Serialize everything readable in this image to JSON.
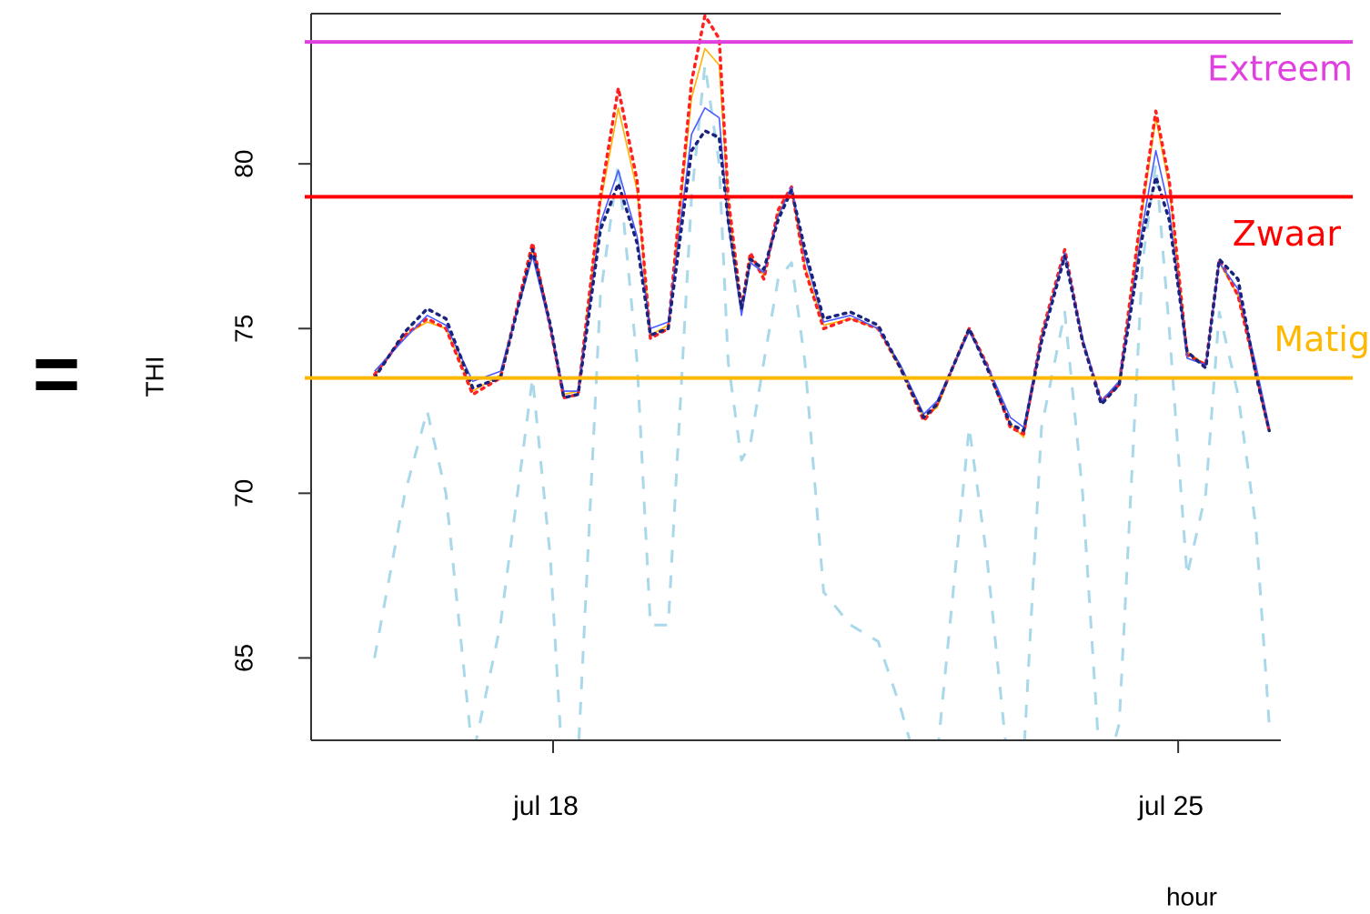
{
  "chart_data": {
    "type": "line",
    "prefix": "=",
    "ylabel": "THI",
    "xlabel": "hour",
    "xlim": [
      15.29,
      26.15
    ],
    "ylim": [
      62.5,
      84.56
    ],
    "xticks": [
      {
        "value": 18,
        "label": "jul 18"
      },
      {
        "value": 25,
        "label": "jul 25"
      }
    ],
    "yticks": [
      65,
      70,
      75,
      80
    ],
    "x": [
      16.0,
      16.34,
      16.59,
      16.8,
      17.1,
      17.41,
      17.77,
      17.97,
      18.12,
      18.28,
      18.53,
      18.73,
      18.94,
      19.09,
      19.29,
      19.55,
      19.7,
      19.86,
      19.96,
      20.11,
      20.21,
      20.36,
      20.52,
      20.67,
      20.82,
      21.03,
      21.33,
      21.64,
      21.89,
      22.15,
      22.3,
      22.66,
      22.86,
      23.12,
      23.27,
      23.47,
      23.73,
      23.93,
      24.14,
      24.34,
      24.6,
      24.75,
      24.9,
      25.1,
      25.31,
      25.46,
      25.67,
      25.87,
      26.02
    ],
    "series": [
      {
        "color": "#a8d8ea",
        "style": "dashed",
        "values": [
          65,
          70,
          72.5,
          70,
          62,
          66,
          73.5,
          68,
          61,
          62,
          76,
          80,
          74,
          66,
          66,
          79,
          83,
          80,
          74,
          71,
          71.5,
          74,
          76.5,
          77,
          74,
          67,
          66,
          65.5,
          63.5,
          61,
          62,
          72,
          68,
          61,
          62,
          72,
          75.5,
          70,
          61,
          63,
          77,
          80,
          75,
          67.5,
          70,
          75.5,
          73,
          69,
          63
        ]
      },
      {
        "color": "#ffb000",
        "style": "solid",
        "values": [
          73.6,
          74.8,
          75.2,
          75.0,
          73.1,
          73.6,
          77.4,
          75.0,
          73.0,
          73.1,
          78.8,
          81.7,
          79.2,
          74.8,
          75.1,
          82.0,
          83.5,
          83.0,
          78.8,
          75.5,
          77.2,
          76.6,
          78.5,
          79.2,
          76.9,
          75.1,
          75.3,
          75.0,
          73.8,
          72.3,
          72.6,
          75.0,
          73.9,
          72.1,
          71.7,
          74.8,
          77.3,
          74.7,
          72.8,
          73.3,
          78.6,
          81.4,
          79.3,
          74.3,
          73.9,
          77.0,
          76.0,
          73.7,
          71.9
        ]
      },
      {
        "color": "#ff2020",
        "style": "dotted",
        "values": [
          73.6,
          74.8,
          75.3,
          75.0,
          73.0,
          73.5,
          77.6,
          75.0,
          72.9,
          73.0,
          79.0,
          82.3,
          79.5,
          74.7,
          75.0,
          82.5,
          84.5,
          83.8,
          79.0,
          75.6,
          77.3,
          76.5,
          78.6,
          79.3,
          76.8,
          75.0,
          75.3,
          75.0,
          73.8,
          72.2,
          72.7,
          75.0,
          73.9,
          72.0,
          71.8,
          74.8,
          77.4,
          74.6,
          72.8,
          73.3,
          78.8,
          81.6,
          79.5,
          74.2,
          73.9,
          77.1,
          76.0,
          73.7,
          71.9
        ]
      },
      {
        "color": "#4a5cff",
        "style": "solid",
        "values": [
          73.7,
          74.7,
          75.4,
          75.1,
          73.4,
          73.7,
          77.2,
          75.0,
          73.1,
          73.1,
          78.2,
          79.8,
          77.8,
          75.0,
          75.2,
          80.9,
          81.7,
          81.4,
          78.2,
          75.4,
          77.0,
          76.7,
          78.4,
          79.3,
          77.2,
          75.2,
          75.4,
          75.0,
          73.9,
          72.4,
          72.8,
          74.9,
          73.9,
          72.3,
          72.0,
          74.7,
          77.3,
          74.7,
          72.8,
          73.4,
          78.1,
          80.4,
          78.6,
          74.1,
          73.9,
          77.0,
          76.2,
          73.9,
          72.0
        ]
      },
      {
        "color": "#1a237e",
        "style": "dotted",
        "values": [
          73.5,
          74.9,
          75.6,
          75.3,
          73.2,
          73.5,
          77.4,
          75.1,
          72.9,
          73.0,
          78.0,
          79.4,
          77.6,
          74.8,
          75.0,
          80.4,
          81.0,
          80.8,
          78.3,
          75.6,
          77.1,
          76.8,
          78.3,
          79.2,
          77.4,
          75.3,
          75.5,
          75.1,
          73.8,
          72.3,
          72.7,
          75.0,
          73.8,
          72.1,
          71.9,
          74.6,
          77.2,
          74.6,
          72.7,
          73.3,
          77.8,
          79.6,
          78.3,
          74.3,
          73.8,
          77.1,
          76.5,
          73.6,
          71.9
        ]
      }
    ],
    "thresholds": [
      {
        "label": "Extreem",
        "value": 83.7,
        "color": "#e040e0"
      },
      {
        "label": "Zwaar",
        "value": 79.0,
        "color": "#ff0000"
      },
      {
        "label": "Matig",
        "value": 73.5,
        "color": "#ffb800"
      }
    ]
  }
}
